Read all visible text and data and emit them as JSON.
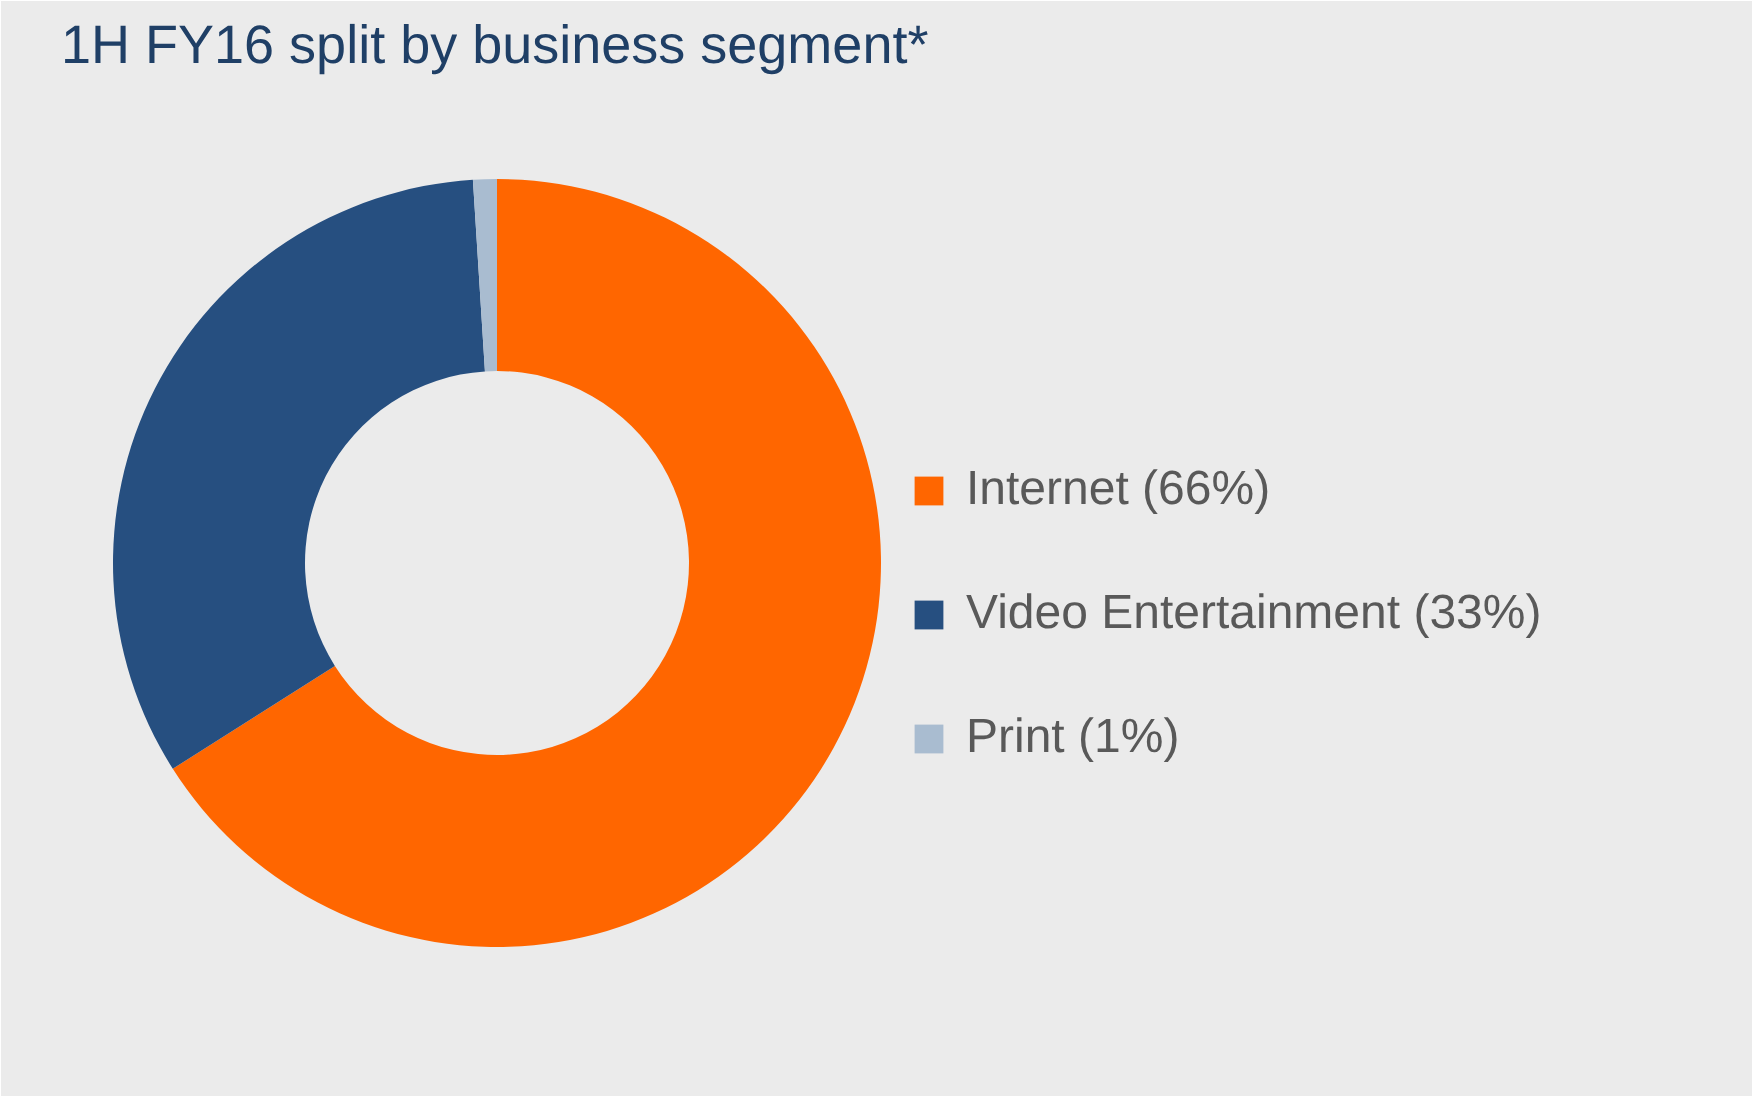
{
  "chart_data": {
    "type": "donut",
    "title": "1H FY16 split by business segment*",
    "categories": [
      "Internet (66%)",
      "Video Entertainment (33%)",
      "Print (1%)"
    ],
    "values": [
      66,
      33,
      1
    ],
    "colors": [
      "#ff6600",
      "#264f80",
      "#a9bcd0"
    ],
    "legend": "right"
  }
}
